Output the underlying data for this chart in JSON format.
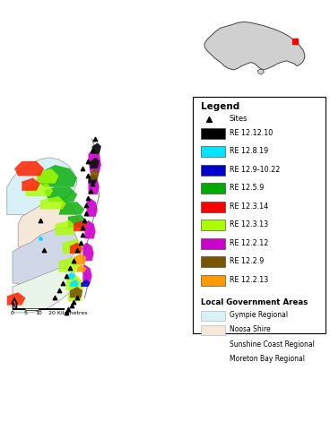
{
  "background_color": "#ffffff",
  "map_ocean_color": "#c8e8f0",
  "legend": {
    "re_items": [
      {
        "color": "#000000",
        "label": "RE 12.12.10"
      },
      {
        "color": "#00e5ff",
        "label": "RE 12.8.19"
      },
      {
        "color": "#0000cc",
        "label": "RE 12.9-10.22"
      },
      {
        "color": "#00aa00",
        "label": "RE 12.5.9"
      },
      {
        "color": "#ff0000",
        "label": "RE 12.3.14"
      },
      {
        "color": "#aaff00",
        "label": "RE 12.3.13"
      },
      {
        "color": "#cc00cc",
        "label": "RE 12.2.12"
      },
      {
        "color": "#7a5500",
        "label": "RE 12.2.9"
      },
      {
        "color": "#ff9900",
        "label": "RE 12.2.13"
      }
    ],
    "lga_items": [
      {
        "color": "#d8f0f8",
        "label": "Gympie Regional"
      },
      {
        "color": "#f5e8d8",
        "label": "Noosa Shire"
      },
      {
        "color": "#d0d8e8",
        "label": "Sunshine Coast Regional"
      },
      {
        "color": "#e8f5e8",
        "label": "Moreton Bay Regional"
      }
    ]
  }
}
